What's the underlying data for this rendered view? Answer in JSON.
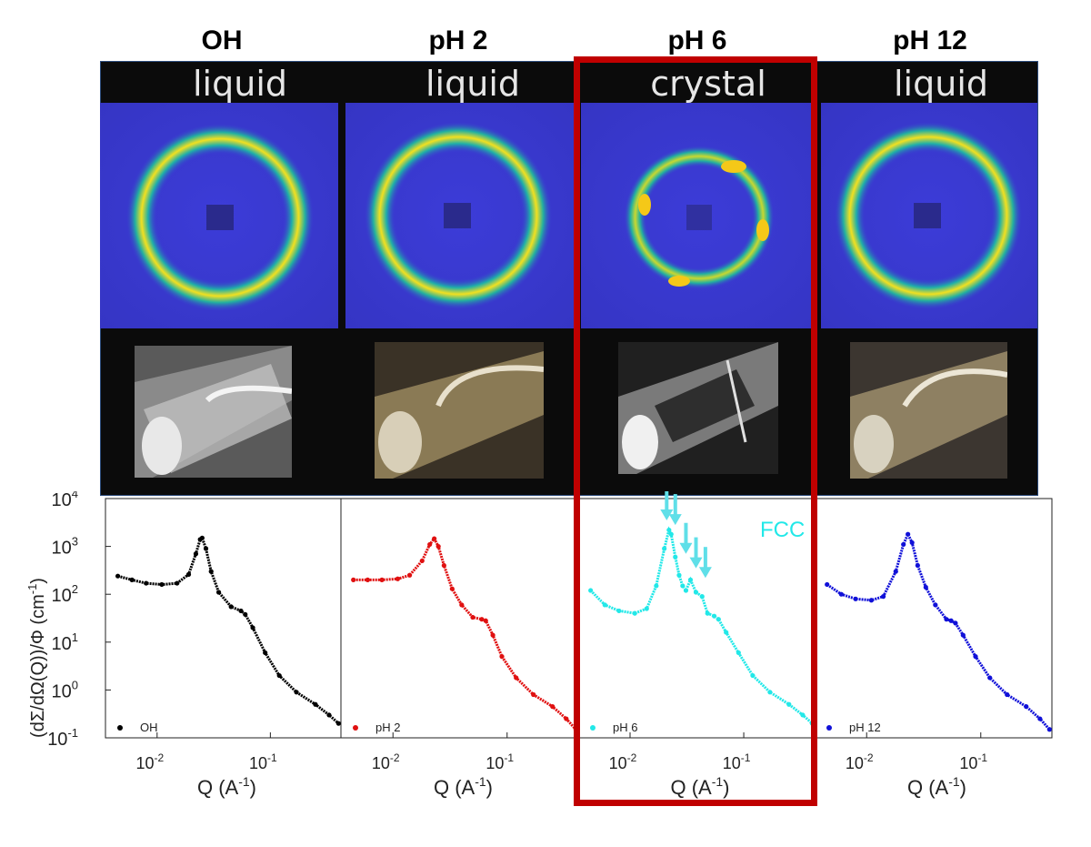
{
  "columns": [
    {
      "title": "OH",
      "phase": "liquid"
    },
    {
      "title": "pH 2",
      "phase": "liquid"
    },
    {
      "title": "pH 6",
      "phase": "crystal"
    },
    {
      "title": "pH 12",
      "phase": "liquid"
    }
  ],
  "colors": {
    "OH": "#000000",
    "pH2": "#e01010",
    "pH6": "#22e8e8",
    "pH12": "#1010d8",
    "highlight": "#c00000"
  },
  "chart_data": {
    "type": "scatter",
    "ylabel": "(dΣ/dΩ(Q))/Φ (cm",
    "ylabel_sup": "-1",
    "ylabel_end": ")",
    "xlabel": "Q (A",
    "xlabel_sup": "-1",
    "xlabel_end": ")",
    "xscale": "log",
    "yscale": "log",
    "xlim": [
      0.0035,
      0.42
    ],
    "ylim": [
      0.1,
      10000
    ],
    "y_ticks": [
      {
        "base": "10",
        "exp": "4"
      },
      {
        "base": "10",
        "exp": "3"
      },
      {
        "base": "10",
        "exp": "2"
      },
      {
        "base": "10",
        "exp": "1"
      },
      {
        "base": "10",
        "exp": "0"
      },
      {
        "base": "10",
        "exp": "-1"
      }
    ],
    "x_ticks": [
      {
        "base": "10",
        "exp": "-2"
      },
      {
        "base": "10",
        "exp": "-1"
      }
    ],
    "annotation": "FCC",
    "series": [
      {
        "name": "OH",
        "color": "#000000",
        "x": [
          0.0045,
          0.006,
          0.008,
          0.011,
          0.015,
          0.019,
          0.022,
          0.024,
          0.025,
          0.027,
          0.03,
          0.035,
          0.045,
          0.055,
          0.06,
          0.07,
          0.09,
          0.12,
          0.17,
          0.25,
          0.33,
          0.4
        ],
        "y": [
          240,
          200,
          170,
          160,
          170,
          260,
          700,
          1400,
          1500,
          900,
          300,
          110,
          55,
          45,
          38,
          20,
          6,
          2,
          0.9,
          0.5,
          0.3,
          0.2
        ]
      },
      {
        "name": "pH 2",
        "color": "#e01010",
        "x": [
          0.0045,
          0.006,
          0.008,
          0.011,
          0.014,
          0.018,
          0.021,
          0.023,
          0.025,
          0.028,
          0.033,
          0.04,
          0.05,
          0.06,
          0.065,
          0.075,
          0.09,
          0.12,
          0.17,
          0.25,
          0.33,
          0.4
        ],
        "y": [
          200,
          200,
          200,
          210,
          250,
          500,
          1100,
          1450,
          1000,
          400,
          130,
          60,
          33,
          30,
          28,
          14,
          5,
          1.8,
          0.8,
          0.45,
          0.25,
          0.15
        ]
      },
      {
        "name": "pH 6",
        "color": "#22e8e8",
        "x": [
          0.0045,
          0.006,
          0.008,
          0.011,
          0.014,
          0.017,
          0.02,
          0.022,
          0.023,
          0.025,
          0.027,
          0.029,
          0.031,
          0.034,
          0.038,
          0.043,
          0.048,
          0.055,
          0.06,
          0.07,
          0.09,
          0.12,
          0.17,
          0.25,
          0.33,
          0.4
        ],
        "y": [
          120,
          60,
          45,
          40,
          50,
          150,
          900,
          2200,
          1800,
          600,
          250,
          150,
          120,
          200,
          110,
          90,
          40,
          35,
          30,
          16,
          6,
          2,
          0.9,
          0.5,
          0.3,
          0.2
        ]
      },
      {
        "name": "pH 12",
        "color": "#1010d8",
        "x": [
          0.0045,
          0.006,
          0.008,
          0.011,
          0.014,
          0.018,
          0.021,
          0.023,
          0.025,
          0.028,
          0.033,
          0.04,
          0.05,
          0.055,
          0.06,
          0.07,
          0.09,
          0.12,
          0.17,
          0.25,
          0.33,
          0.4
        ],
        "y": [
          160,
          100,
          80,
          75,
          90,
          300,
          1100,
          1800,
          1200,
          400,
          140,
          60,
          30,
          28,
          25,
          14,
          5,
          1.8,
          0.8,
          0.45,
          0.25,
          0.15
        ]
      }
    ],
    "arrows_x": [
      0.021,
      0.025,
      0.031,
      0.038,
      0.046
    ],
    "arrows_y": [
      3500,
      2800,
      700,
      350,
      220
    ]
  }
}
